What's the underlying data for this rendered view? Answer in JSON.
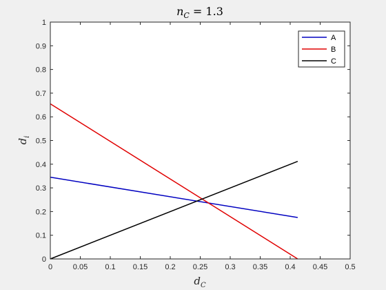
{
  "chart_data": {
    "type": "line",
    "title": {
      "base": "n",
      "sub": "C",
      "rest": " = 1.3"
    },
    "xlabel": {
      "base": "d",
      "sub": "C"
    },
    "ylabel": {
      "base": "d",
      "sub": "i"
    },
    "xlim": [
      0,
      0.5
    ],
    "ylim": [
      0,
      1
    ],
    "xticks": [
      "0",
      "0.05",
      "0.1",
      "0.15",
      "0.2",
      "0.25",
      "0.3",
      "0.35",
      "0.4",
      "0.45",
      "0.5"
    ],
    "yticks": [
      "0",
      "0.1",
      "0.2",
      "0.3",
      "0.4",
      "0.5",
      "0.6",
      "0.7",
      "0.8",
      "0.9",
      "1"
    ],
    "grid": false,
    "legend_position": "top-right",
    "series": [
      {
        "name": "A",
        "color": "#0000c0",
        "x": [
          0,
          0.4125
        ],
        "y": [
          0.345,
          0.175
        ]
      },
      {
        "name": "B",
        "color": "#e00000",
        "x": [
          0,
          0.4125
        ],
        "y": [
          0.655,
          0.0
        ]
      },
      {
        "name": "C",
        "color": "#000000",
        "x": [
          0,
          0.4125
        ],
        "y": [
          0.0,
          0.412
        ]
      }
    ]
  }
}
